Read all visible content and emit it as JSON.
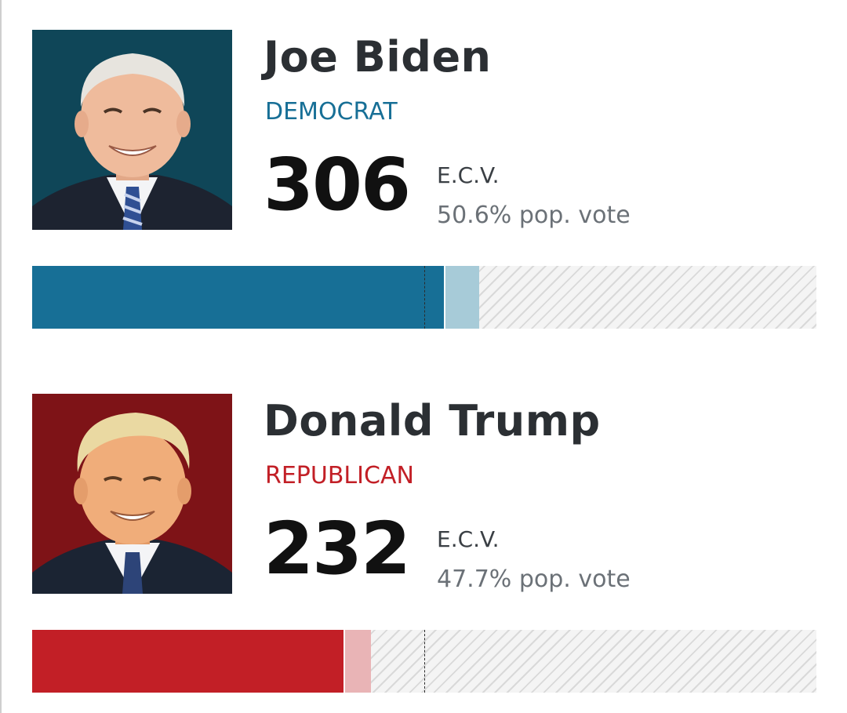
{
  "candidates": [
    {
      "name": "Joe Biden",
      "party": "DEMOCRAT",
      "ecv": "306",
      "ecv_label": "E.C.V.",
      "pop_vote": "50.6% pop. vote",
      "party_color": "#176f96",
      "portrait_bg": "#0f4658",
      "bar": {
        "fill_fraction": 0.525,
        "lean_fraction": 0.043,
        "fill_color": "#176f96",
        "lean_color": "#a7cbd8"
      }
    },
    {
      "name": "Donald Trump",
      "party": "REPUBLICAN",
      "ecv": "232",
      "ecv_label": "E.C.V.",
      "pop_vote": "47.7% pop. vote",
      "party_color": "#c21f26",
      "portrait_bg": "#7e1317",
      "bar": {
        "fill_fraction": 0.397,
        "lean_fraction": 0.033,
        "fill_color": "#c21f26",
        "lean_color": "#e9b4b6"
      }
    }
  ],
  "threshold": {
    "fraction": 0.5
  }
}
